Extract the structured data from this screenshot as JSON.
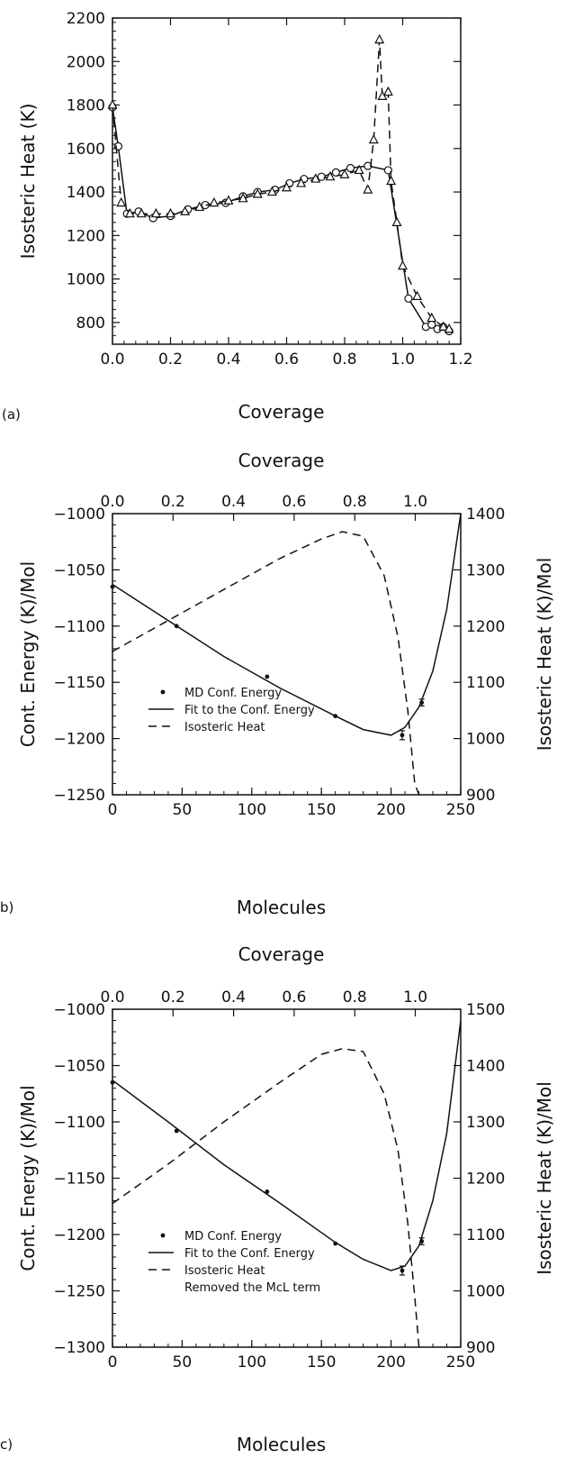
{
  "chart_data": [
    {
      "panel_label": "(a)",
      "type": "line",
      "xlabel": "Coverage",
      "ylabel": "Isosteric Heat (K)",
      "xlim": [
        0.0,
        1.2
      ],
      "ylim": [
        700,
        2200
      ],
      "x_ticks": [
        "0.0",
        "0.2",
        "0.4",
        "0.6",
        "0.8",
        "1.0",
        "1.2"
      ],
      "y_ticks": [
        "800",
        "1000",
        "1200",
        "1400",
        "1600",
        "1800",
        "2000",
        "2200"
      ],
      "series": [
        {
          "marker": "circle",
          "line": "solid",
          "x": [
            0.0,
            0.02,
            0.05,
            0.09,
            0.14,
            0.2,
            0.26,
            0.32,
            0.39,
            0.45,
            0.5,
            0.56,
            0.61,
            0.66,
            0.72,
            0.77,
            0.82,
            0.88,
            0.95,
            1.02,
            1.08,
            1.1,
            1.12,
            1.14,
            1.16
          ],
          "y": [
            1790,
            1610,
            1300,
            1310,
            1280,
            1290,
            1320,
            1340,
            1350,
            1380,
            1400,
            1410,
            1440,
            1460,
            1470,
            1490,
            1510,
            1520,
            1500,
            910,
            780,
            790,
            770,
            780,
            760
          ]
        },
        {
          "marker": "triangle",
          "line": "dashed",
          "x": [
            0.0,
            0.03,
            0.06,
            0.1,
            0.15,
            0.2,
            0.25,
            0.3,
            0.35,
            0.4,
            0.45,
            0.5,
            0.55,
            0.6,
            0.65,
            0.7,
            0.75,
            0.8,
            0.85,
            0.88,
            0.9,
            0.92,
            0.93,
            0.95,
            0.96,
            0.98,
            1.0,
            1.05,
            1.1,
            1.14,
            1.16
          ],
          "y": [
            1800,
            1350,
            1300,
            1300,
            1300,
            1300,
            1310,
            1330,
            1350,
            1360,
            1370,
            1390,
            1400,
            1420,
            1440,
            1460,
            1470,
            1480,
            1500,
            1410,
            1640,
            2100,
            1840,
            1860,
            1450,
            1260,
            1060,
            920,
            820,
            780,
            770
          ]
        }
      ]
    },
    {
      "panel_label": "b)",
      "type": "line",
      "xlabel": "Molecules",
      "x2label": "Coverage",
      "ylabel": "Cont. Energy (K)/Mol",
      "y2label": "Isosteric Heat (K)/Mol",
      "xlim": [
        0,
        250
      ],
      "ylim": [
        -1250,
        -1000
      ],
      "y2lim": [
        900,
        1400
      ],
      "x_ticks": [
        "0",
        "50",
        "100",
        "150",
        "200",
        "250"
      ],
      "x2_ticks": [
        "0.0",
        "0.2",
        "0.4",
        "0.6",
        "0.8",
        "1.0"
      ],
      "y_ticks": [
        "-1000",
        "-1050",
        "-1100",
        "-1150",
        "-1200",
        "-1250"
      ],
      "y2_ticks": [
        "1400",
        "1300",
        "1200",
        "1100",
        "1000",
        "900"
      ],
      "legend": [
        "MD Conf. Energy",
        "Fit to the Conf. Energy",
        "Isosteric Heat"
      ],
      "series": [
        {
          "name": "MD Conf. Energy",
          "marker": "dot",
          "axis": "left",
          "x": [
            0,
            46,
            111,
            160,
            208,
            222
          ],
          "y": [
            -1065,
            -1100,
            -1145,
            -1180,
            -1197,
            -1168
          ],
          "err": [
            0,
            0,
            0,
            0,
            4,
            3
          ]
        },
        {
          "name": "Fit to the Conf. Energy",
          "line": "solid",
          "axis": "left",
          "x": [
            0,
            40,
            80,
            120,
            160,
            180,
            200,
            210,
            220,
            230,
            240,
            250
          ],
          "y": [
            -1063,
            -1095,
            -1127,
            -1155,
            -1180,
            -1192,
            -1197,
            -1190,
            -1172,
            -1140,
            -1085,
            -1000
          ]
        },
        {
          "name": "Isosteric Heat",
          "line": "dashed",
          "axis": "right",
          "x": [
            0,
            40,
            80,
            120,
            150,
            165,
            180,
            195,
            205,
            212,
            217,
            220
          ],
          "y": [
            1155,
            1210,
            1265,
            1320,
            1355,
            1368,
            1360,
            1290,
            1180,
            1050,
            920,
            900
          ]
        }
      ]
    },
    {
      "panel_label": "c)",
      "type": "line",
      "xlabel": "Molecules",
      "x2label": "Coverage",
      "ylabel": "Cont. Energy (K)/Mol",
      "y2label": "Isosteric Heat (K)/Mol",
      "xlim": [
        0,
        250
      ],
      "ylim": [
        -1300,
        -1000
      ],
      "y2lim": [
        900,
        1500
      ],
      "x_ticks": [
        "0",
        "50",
        "100",
        "150",
        "200",
        "250"
      ],
      "x2_ticks": [
        "0.0",
        "0.2",
        "0.4",
        "0.6",
        "0.8",
        "1.0"
      ],
      "y_ticks": [
        "-1000",
        "-1050",
        "-1100",
        "-1150",
        "-1200",
        "-1250",
        "-1300"
      ],
      "y2_ticks": [
        "1500",
        "1400",
        "1300",
        "1200",
        "1100",
        "1000",
        "900"
      ],
      "legend": [
        "MD Conf. Energy",
        "Fit to the Conf. Energy",
        "Isosteric Heat",
        "Removed the McL term"
      ],
      "series": [
        {
          "name": "MD Conf. Energy",
          "marker": "dot",
          "axis": "left",
          "x": [
            0,
            46,
            111,
            160,
            208,
            222
          ],
          "y": [
            -1065,
            -1108,
            -1162,
            -1208,
            -1232,
            -1206
          ],
          "err": [
            0,
            0,
            0,
            0,
            4,
            3
          ]
        },
        {
          "name": "Fit to the Conf. Energy",
          "line": "solid",
          "axis": "left",
          "x": [
            0,
            40,
            80,
            120,
            160,
            180,
            200,
            210,
            220,
            230,
            240,
            250
          ],
          "y": [
            -1063,
            -1100,
            -1138,
            -1172,
            -1207,
            -1222,
            -1232,
            -1228,
            -1210,
            -1170,
            -1110,
            -1010
          ]
        },
        {
          "name": "Isosteric Heat",
          "line": "dashed",
          "axis": "right",
          "x": [
            0,
            40,
            80,
            120,
            150,
            165,
            180,
            195,
            205,
            212,
            217,
            220
          ],
          "y": [
            1155,
            1225,
            1300,
            1370,
            1420,
            1430,
            1425,
            1350,
            1250,
            1120,
            990,
            900
          ]
        }
      ]
    }
  ]
}
